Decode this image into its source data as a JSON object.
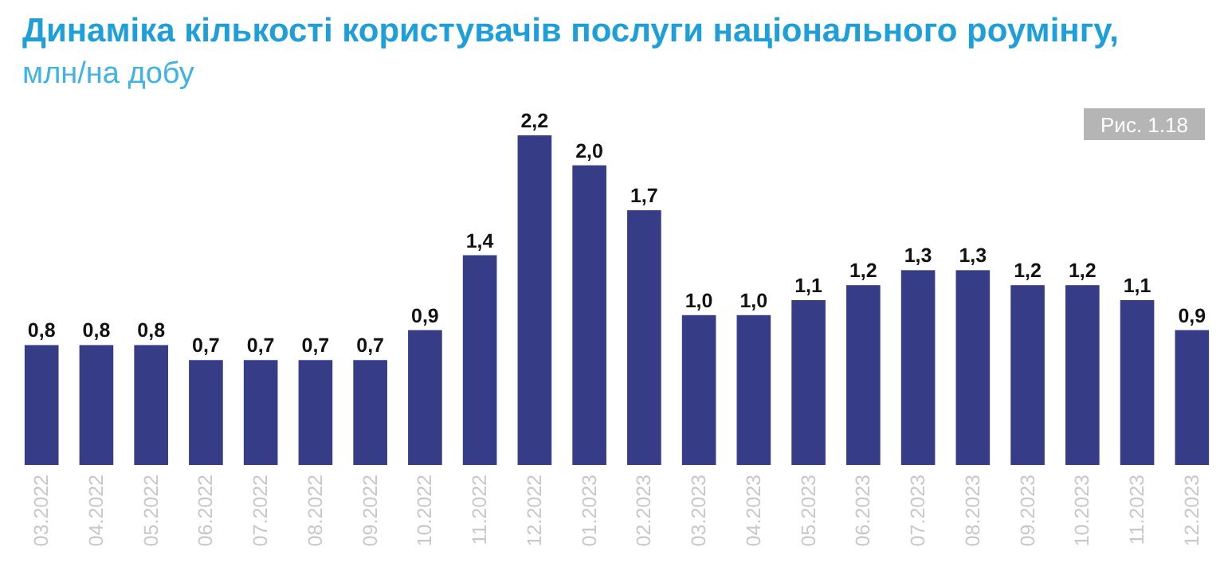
{
  "chart_data": {
    "type": "bar",
    "title": "Динаміка кількості користувачів послуги національного роумінгу,",
    "subtitle": "млн/на добу",
    "annotations": [
      "Рис. 1.18"
    ],
    "categories": [
      "03.2022",
      "04.2022",
      "05.2022",
      "06.2022",
      "07.2022",
      "08.2022",
      "09.2022",
      "10.2022",
      "11.2022",
      "12.2022",
      "01.2023",
      "02.2023",
      "03.2023",
      "04.2023",
      "05.2023",
      "06.2023",
      "07.2023",
      "08.2023",
      "09.2023",
      "10.2023",
      "11.2023",
      "12.2023"
    ],
    "values": [
      0.8,
      0.8,
      0.8,
      0.7,
      0.7,
      0.7,
      0.7,
      0.9,
      1.4,
      2.2,
      2.0,
      1.7,
      1.0,
      1.0,
      1.1,
      1.2,
      1.3,
      1.3,
      1.2,
      1.2,
      1.1,
      0.9
    ],
    "value_labels": [
      "0,8",
      "0,8",
      "0,8",
      "0,7",
      "0,7",
      "0,7",
      "0,7",
      "0,9",
      "1,4",
      "2,2",
      "2,0",
      "1,7",
      "1,0",
      "1,0",
      "1,1",
      "1,2",
      "1,3",
      "1,3",
      "1,2",
      "1,2",
      "1,1",
      "0,9"
    ],
    "color": "#363c85"
  }
}
